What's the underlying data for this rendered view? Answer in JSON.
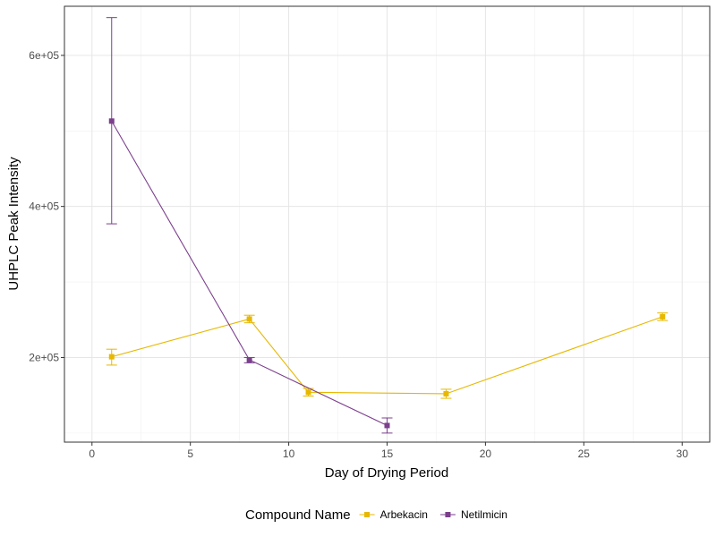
{
  "chart_data": {
    "type": "line",
    "title": "",
    "xlabel": "Day of Drying Period",
    "ylabel": "UHPLC Peak Intensity",
    "xlim": [
      -1.4,
      31.4
    ],
    "ylim": [
      88000,
      665000
    ],
    "x_ticks": [
      0,
      5,
      10,
      15,
      20,
      25,
      30
    ],
    "x_tick_labels": [
      "0",
      "5",
      "10",
      "15",
      "20",
      "25",
      "30"
    ],
    "x_minor_ticks": [
      2.5,
      7.5,
      12.5,
      17.5,
      22.5,
      27.5
    ],
    "y_ticks": [
      200000,
      400000,
      600000
    ],
    "y_tick_labels": [
      "2e+05",
      "4e+05",
      "6e+05"
    ],
    "y_minor_ticks": [
      100000,
      300000,
      500000
    ],
    "grid": true,
    "legend": {
      "title": "Compound Name",
      "position": "bottom",
      "entries": [
        "Arbekacin",
        "Netilmicin"
      ]
    },
    "series": [
      {
        "name": "Arbekacin",
        "color": "#E7B800",
        "x": [
          1,
          8,
          11,
          18,
          29
        ],
        "y": [
          201000,
          251000,
          154000,
          152000,
          254000
        ],
        "err_low": [
          190000,
          246000,
          149000,
          146000,
          249000
        ],
        "err_high": [
          211000,
          256000,
          159000,
          158000,
          259000
        ]
      },
      {
        "name": "Netilmicin",
        "color": "#7B3F8C",
        "x": [
          1,
          8,
          15
        ],
        "y": [
          513000,
          197000,
          110000
        ],
        "err_low": [
          377000,
          193000,
          100000
        ],
        "err_high": [
          650000,
          200000,
          120000
        ]
      }
    ]
  }
}
